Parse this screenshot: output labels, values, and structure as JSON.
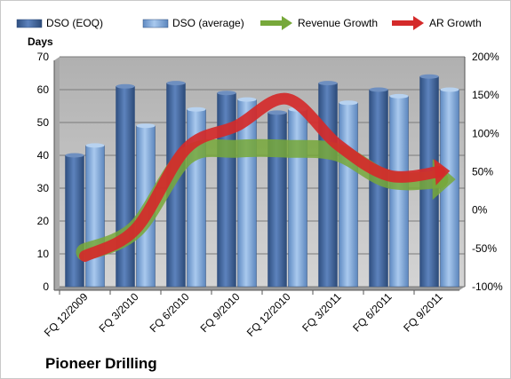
{
  "chart_data": {
    "type": "bar",
    "title": "Pioneer Drilling",
    "ylabel": "Days",
    "ylim": [
      0,
      70
    ],
    "y_ticks": [
      0,
      10,
      20,
      30,
      40,
      50,
      60,
      70
    ],
    "y2lim": [
      -100,
      200
    ],
    "y2_ticks": [
      "-100%",
      "-50%",
      "0%",
      "50%",
      "100%",
      "150%",
      "200%"
    ],
    "categories": [
      "FQ 12/2009",
      "FQ 3/2010",
      "FQ 6/2010",
      "FQ 9/2010",
      "FQ 12/2010",
      "FQ 3/2011",
      "FQ 6/2011",
      "FQ 9/2011"
    ],
    "legend_position": "top",
    "series": [
      {
        "name": "DSO (EOQ)",
        "type": "bar",
        "axis": "left",
        "color": "#4a6fa5",
        "values": [
          40,
          61,
          62,
          59,
          53,
          62,
          60,
          64
        ]
      },
      {
        "name": "DSO (average)",
        "type": "bar",
        "axis": "left",
        "color": "#7fa7d6",
        "values": [
          43,
          49,
          54,
          57,
          54,
          56,
          58,
          60
        ]
      },
      {
        "name": "Revenue Growth",
        "type": "arrow-line",
        "axis": "right",
        "color": "#77a83a",
        "values": [
          -55,
          -25,
          70,
          80,
          80,
          75,
          40,
          40
        ]
      },
      {
        "name": "AR Growth",
        "type": "arrow-line",
        "axis": "right",
        "color": "#d42a2a",
        "values": [
          -60,
          -25,
          80,
          110,
          145,
          85,
          45,
          50
        ]
      }
    ],
    "grid": true,
    "plot_background": "#c0c0c0"
  }
}
